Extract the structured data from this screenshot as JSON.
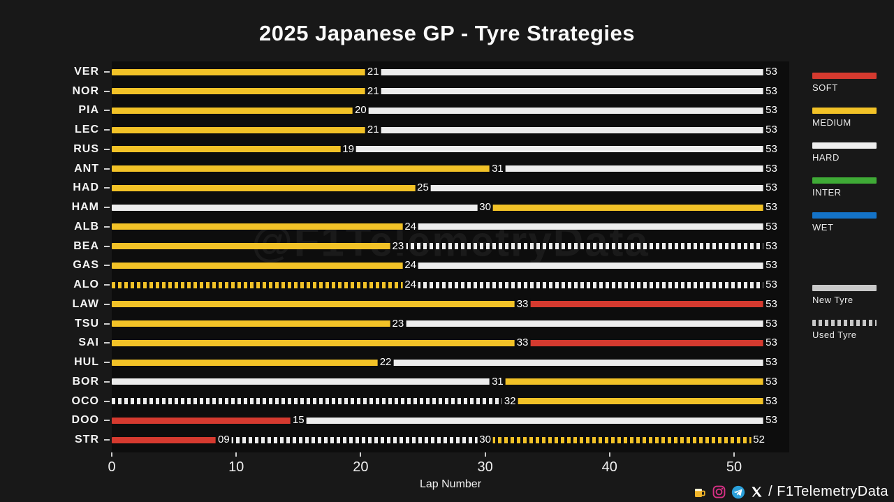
{
  "title": "2025 Japanese GP - Tyre Strategies",
  "xlabel": "Lap Number",
  "watermark": "@F1TelemetryData",
  "footer": {
    "handle_text": "/ F1TelemetryData",
    "icons": [
      "beer-icon",
      "instagram-icon",
      "telegram-icon",
      "x-icon"
    ]
  },
  "colors": {
    "soft": "#d53a2f",
    "medium": "#f2c227",
    "hard": "#ededed",
    "inter": "#3faa36",
    "wet": "#1473c8",
    "neutral": "#c8c8c8"
  },
  "legend": {
    "compounds": [
      {
        "label": "SOFT",
        "compound": "soft"
      },
      {
        "label": "MEDIUM",
        "compound": "medium"
      },
      {
        "label": "HARD",
        "compound": "hard"
      },
      {
        "label": "INTER",
        "compound": "inter"
      },
      {
        "label": "WET",
        "compound": "wet"
      }
    ],
    "conditions": [
      {
        "label": "New Tyre",
        "style": "solid"
      },
      {
        "label": "Used Tyre",
        "style": "dashed"
      }
    ]
  },
  "chart_data": {
    "type": "bar",
    "orientation": "horizontal",
    "title": "2025 Japanese GP - Tyre Strategies",
    "xlabel": "Lap Number",
    "xlim": [
      0,
      54.5
    ],
    "x_ticks": [
      0,
      10,
      20,
      30,
      40,
      50
    ],
    "legend_position": "right",
    "grid": false,
    "drivers": [
      {
        "code": "VER",
        "stints": [
          {
            "compound": "medium",
            "used": false,
            "start": 0,
            "end": 21,
            "label": "21"
          },
          {
            "compound": "hard",
            "used": false,
            "start": 21,
            "end": 53,
            "label": "53"
          }
        ]
      },
      {
        "code": "NOR",
        "stints": [
          {
            "compound": "medium",
            "used": false,
            "start": 0,
            "end": 21,
            "label": "21"
          },
          {
            "compound": "hard",
            "used": false,
            "start": 21,
            "end": 53,
            "label": "53"
          }
        ]
      },
      {
        "code": "PIA",
        "stints": [
          {
            "compound": "medium",
            "used": false,
            "start": 0,
            "end": 20,
            "label": "20"
          },
          {
            "compound": "hard",
            "used": false,
            "start": 20,
            "end": 53,
            "label": "53"
          }
        ]
      },
      {
        "code": "LEC",
        "stints": [
          {
            "compound": "medium",
            "used": false,
            "start": 0,
            "end": 21,
            "label": "21"
          },
          {
            "compound": "hard",
            "used": false,
            "start": 21,
            "end": 53,
            "label": "53"
          }
        ]
      },
      {
        "code": "RUS",
        "stints": [
          {
            "compound": "medium",
            "used": false,
            "start": 0,
            "end": 19,
            "label": "19"
          },
          {
            "compound": "hard",
            "used": false,
            "start": 19,
            "end": 53,
            "label": "53"
          }
        ]
      },
      {
        "code": "ANT",
        "stints": [
          {
            "compound": "medium",
            "used": false,
            "start": 0,
            "end": 31,
            "label": "31"
          },
          {
            "compound": "hard",
            "used": false,
            "start": 31,
            "end": 53,
            "label": "53"
          }
        ]
      },
      {
        "code": "HAD",
        "stints": [
          {
            "compound": "medium",
            "used": false,
            "start": 0,
            "end": 25,
            "label": "25"
          },
          {
            "compound": "hard",
            "used": false,
            "start": 25,
            "end": 53,
            "label": "53"
          }
        ]
      },
      {
        "code": "HAM",
        "stints": [
          {
            "compound": "hard",
            "used": false,
            "start": 0,
            "end": 30,
            "label": "30"
          },
          {
            "compound": "medium",
            "used": false,
            "start": 30,
            "end": 53,
            "label": "53"
          }
        ]
      },
      {
        "code": "ALB",
        "stints": [
          {
            "compound": "medium",
            "used": false,
            "start": 0,
            "end": 24,
            "label": "24"
          },
          {
            "compound": "hard",
            "used": false,
            "start": 24,
            "end": 53,
            "label": "53"
          }
        ]
      },
      {
        "code": "BEA",
        "stints": [
          {
            "compound": "medium",
            "used": false,
            "start": 0,
            "end": 23,
            "label": "23"
          },
          {
            "compound": "hard",
            "used": true,
            "start": 23,
            "end": 53,
            "label": "53"
          }
        ]
      },
      {
        "code": "GAS",
        "stints": [
          {
            "compound": "medium",
            "used": false,
            "start": 0,
            "end": 24,
            "label": "24"
          },
          {
            "compound": "hard",
            "used": false,
            "start": 24,
            "end": 53,
            "label": "53"
          }
        ]
      },
      {
        "code": "ALO",
        "stints": [
          {
            "compound": "medium",
            "used": true,
            "start": 0,
            "end": 24,
            "label": "24"
          },
          {
            "compound": "hard",
            "used": true,
            "start": 24,
            "end": 53,
            "label": "53"
          }
        ]
      },
      {
        "code": "LAW",
        "stints": [
          {
            "compound": "medium",
            "used": false,
            "start": 0,
            "end": 33,
            "label": "33"
          },
          {
            "compound": "soft",
            "used": false,
            "start": 33,
            "end": 53,
            "label": "53"
          }
        ]
      },
      {
        "code": "TSU",
        "stints": [
          {
            "compound": "medium",
            "used": false,
            "start": 0,
            "end": 23,
            "label": "23"
          },
          {
            "compound": "hard",
            "used": false,
            "start": 23,
            "end": 53,
            "label": "53"
          }
        ]
      },
      {
        "code": "SAI",
        "stints": [
          {
            "compound": "medium",
            "used": false,
            "start": 0,
            "end": 33,
            "label": "33"
          },
          {
            "compound": "soft",
            "used": false,
            "start": 33,
            "end": 53,
            "label": "53"
          }
        ]
      },
      {
        "code": "HUL",
        "stints": [
          {
            "compound": "medium",
            "used": false,
            "start": 0,
            "end": 22,
            "label": "22"
          },
          {
            "compound": "hard",
            "used": false,
            "start": 22,
            "end": 53,
            "label": "53"
          }
        ]
      },
      {
        "code": "BOR",
        "stints": [
          {
            "compound": "hard",
            "used": false,
            "start": 0,
            "end": 31,
            "label": "31"
          },
          {
            "compound": "medium",
            "used": false,
            "start": 31,
            "end": 53,
            "label": "53"
          }
        ]
      },
      {
        "code": "OCO",
        "stints": [
          {
            "compound": "hard",
            "used": true,
            "start": 0,
            "end": 32,
            "label": "32"
          },
          {
            "compound": "medium",
            "used": false,
            "start": 32,
            "end": 53,
            "label": "53"
          }
        ]
      },
      {
        "code": "DOO",
        "stints": [
          {
            "compound": "soft",
            "used": false,
            "start": 0,
            "end": 15,
            "label": "15"
          },
          {
            "compound": "hard",
            "used": false,
            "start": 15,
            "end": 53,
            "label": "53"
          }
        ]
      },
      {
        "code": "STR",
        "stints": [
          {
            "compound": "soft",
            "used": false,
            "start": 0,
            "end": 9,
            "label": "09"
          },
          {
            "compound": "hard",
            "used": true,
            "start": 9,
            "end": 30,
            "label": "30"
          },
          {
            "compound": "medium",
            "used": true,
            "start": 30,
            "end": 52,
            "label": "52"
          }
        ]
      }
    ]
  }
}
